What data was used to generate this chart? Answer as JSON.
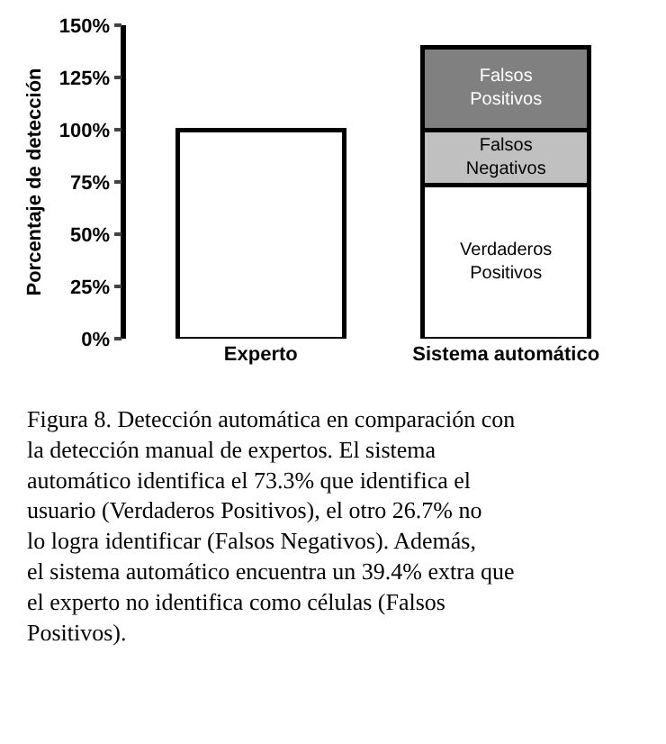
{
  "chart_data": {
    "type": "bar",
    "stacked": true,
    "categories": [
      "Experto",
      "Sistema automático"
    ],
    "ylabel": "Porcentaje de detección",
    "series": [
      {
        "color": "#ffffff",
        "values": [
          100,
          null
        ]
      },
      {
        "name": "Verdaderos Positivos",
        "color": "#ffffff",
        "values": [
          null,
          73.3
        ]
      },
      {
        "name": "Falsos Negativos",
        "color": "#c0c0c0",
        "values": [
          null,
          26.7
        ]
      },
      {
        "name": "Falsos Positivos",
        "color": "#808080",
        "values": [
          null,
          39.4
        ]
      }
    ],
    "ylim": [
      0,
      150
    ],
    "yticks": [
      {
        "value": 0,
        "label": "0%"
      },
      {
        "value": 25,
        "label": "25%"
      },
      {
        "value": 50,
        "label": "50%"
      },
      {
        "value": 75,
        "label": "75%"
      },
      {
        "value": 100,
        "label": "100%"
      },
      {
        "value": 125,
        "label": "125%"
      },
      {
        "value": 150,
        "label": "150%"
      }
    ],
    "grid": false,
    "legend": false,
    "annotations": [
      "Figura 8. Detección automática en comparación con la detección manual de expertos. El sistema automático identifica el 73.3% que identifica el usuario (Verdaderos Positivos), el otro 26.7% no lo logra identificar (Falsos Negativos). Además, el sistema automático encuentra un 39.4% extra que el experto no identifica como células (Falsos Positivos)."
    ]
  }
}
